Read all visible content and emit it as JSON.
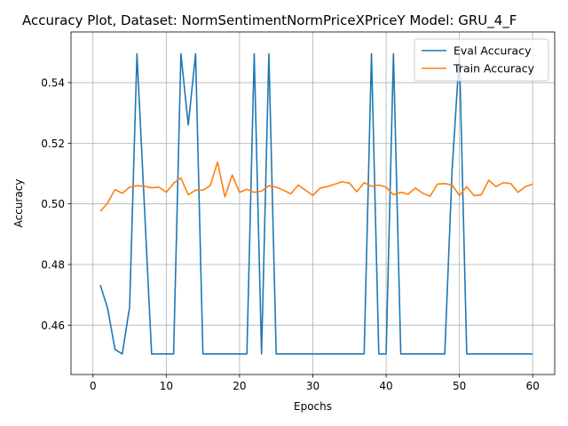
{
  "chart_data": {
    "type": "line",
    "title": "Accuracy Plot, Dataset: NormSentimentNormPriceXPriceY Model: GRU_4_F",
    "xlabel": "Epochs",
    "ylabel": "Accuracy",
    "xlim": [
      -3,
      63
    ],
    "ylim": [
      0.4437,
      0.5567
    ],
    "xticks": [
      0,
      10,
      20,
      30,
      40,
      50,
      60
    ],
    "yticks": [
      0.46,
      0.48,
      0.5,
      0.52,
      0.54
    ],
    "ytick_labels": [
      "0.46",
      "0.48",
      "0.50",
      "0.52",
      "0.54"
    ],
    "grid": true,
    "legend_position": "top-right",
    "x": [
      1,
      2,
      3,
      4,
      5,
      6,
      7,
      8,
      9,
      10,
      11,
      12,
      13,
      14,
      15,
      16,
      17,
      18,
      19,
      20,
      21,
      22,
      23,
      24,
      25,
      26,
      27,
      28,
      29,
      30,
      31,
      32,
      33,
      34,
      35,
      36,
      37,
      38,
      39,
      40,
      41,
      42,
      43,
      44,
      45,
      46,
      47,
      48,
      49,
      50,
      51,
      52,
      53,
      54,
      55,
      56,
      57,
      58,
      59,
      60
    ],
    "series": [
      {
        "name": "Eval Accuracy",
        "color": "#1f77b4",
        "values": [
          0.4732,
          0.4655,
          0.452,
          0.4505,
          0.466,
          0.5495,
          0.5,
          0.4505,
          0.4505,
          0.4505,
          0.4505,
          0.5495,
          0.526,
          0.5495,
          0.4505,
          0.4505,
          0.4505,
          0.4505,
          0.4505,
          0.4505,
          0.4505,
          0.5495,
          0.4505,
          0.5495,
          0.4505,
          0.4505,
          0.4505,
          0.4505,
          0.4505,
          0.4505,
          0.4505,
          0.4505,
          0.4505,
          0.4505,
          0.4505,
          0.4505,
          0.4505,
          0.5495,
          0.4505,
          0.4505,
          0.5495,
          0.4505,
          0.4505,
          0.4505,
          0.4505,
          0.4505,
          0.4505,
          0.4505,
          0.511,
          0.5495,
          0.4505,
          0.4505,
          0.4505,
          0.4505,
          0.4505,
          0.4505,
          0.4505,
          0.4505,
          0.4505,
          0.4505
        ]
      },
      {
        "name": "Train Accuracy",
        "color": "#ff7f0e",
        "values": [
          0.4975,
          0.5003,
          0.5047,
          0.5035,
          0.5055,
          0.506,
          0.5058,
          0.5053,
          0.5055,
          0.5038,
          0.5068,
          0.5085,
          0.503,
          0.5045,
          0.5045,
          0.506,
          0.5138,
          0.5023,
          0.5095,
          0.5038,
          0.5048,
          0.5038,
          0.5042,
          0.506,
          0.5055,
          0.5045,
          0.5033,
          0.5062,
          0.5045,
          0.5028,
          0.5052,
          0.5057,
          0.5065,
          0.5073,
          0.5068,
          0.504,
          0.507,
          0.5058,
          0.5062,
          0.5055,
          0.503,
          0.5038,
          0.5032,
          0.5052,
          0.5035,
          0.5025,
          0.5065,
          0.5067,
          0.5062,
          0.5028,
          0.5057,
          0.5027,
          0.503,
          0.5078,
          0.5057,
          0.507,
          0.5067,
          0.5038,
          0.5057,
          0.5065
        ]
      }
    ]
  }
}
